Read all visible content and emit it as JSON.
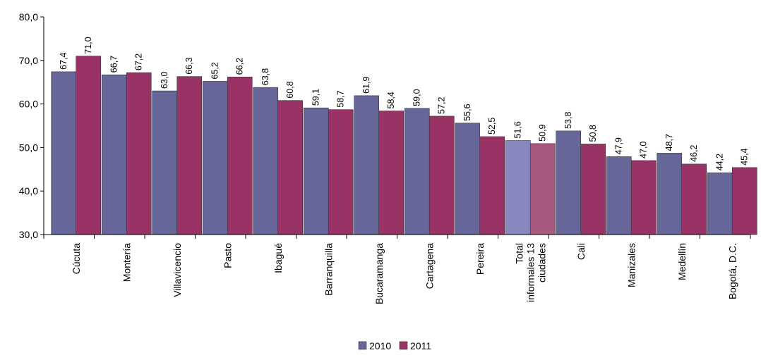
{
  "chart_data": {
    "type": "bar",
    "categories": [
      "Cúcuta",
      "Montería",
      "Villavicencio",
      "Pasto",
      "Ibagué",
      "Barranquilla",
      "Bucaramanga",
      "Cartagena",
      "Pereira",
      "Total\ninformales 13\nciudades",
      "Cali",
      "Manizales",
      "Medellín",
      "Bogotá, D.C."
    ],
    "series": [
      {
        "name": "2010",
        "color": "#666699",
        "colors": [
          "#666699",
          "#666699",
          "#666699",
          "#666699",
          "#666699",
          "#666699",
          "#666699",
          "#666699",
          "#666699",
          "#8888bf",
          "#666699",
          "#666699",
          "#666699",
          "#666699"
        ],
        "values": [
          67.4,
          66.7,
          63.0,
          65.2,
          63.8,
          59.1,
          61.9,
          59.0,
          55.6,
          51.6,
          53.8,
          47.9,
          48.7,
          44.2
        ],
        "value_labels": [
          "67,4",
          "66,7",
          "63,0",
          "65,2",
          "63,8",
          "59,1",
          "61,9",
          "59,0",
          "55,6",
          "51,6",
          "53,8",
          "47,9",
          "48,7",
          "44,2"
        ]
      },
      {
        "name": "2011",
        "color": "#993366",
        "colors": [
          "#993366",
          "#993366",
          "#993366",
          "#993366",
          "#993366",
          "#993366",
          "#993366",
          "#993366",
          "#993366",
          "#a8587f",
          "#993366",
          "#993366",
          "#993366",
          "#993366"
        ],
        "values": [
          71.0,
          67.2,
          66.3,
          66.2,
          60.8,
          58.7,
          58.4,
          57.2,
          52.5,
          50.9,
          50.8,
          47.0,
          46.2,
          45.4
        ],
        "value_labels": [
          "71,0",
          "67,2",
          "66,3",
          "66,2",
          "60,8",
          "58,7",
          "58,4",
          "57,2",
          "52,5",
          "50,9",
          "50,8",
          "47,0",
          "46,2",
          "45,4"
        ]
      }
    ],
    "ylim": [
      30,
      80
    ],
    "yticks": [
      {
        "value": 30,
        "label": "30,0"
      },
      {
        "value": 40,
        "label": "40,0"
      },
      {
        "value": 50,
        "label": "50,0"
      },
      {
        "value": 60,
        "label": "60,0"
      },
      {
        "value": 70,
        "label": "70,0"
      },
      {
        "value": 80,
        "label": "80,0"
      }
    ],
    "legend": "bottom"
  }
}
